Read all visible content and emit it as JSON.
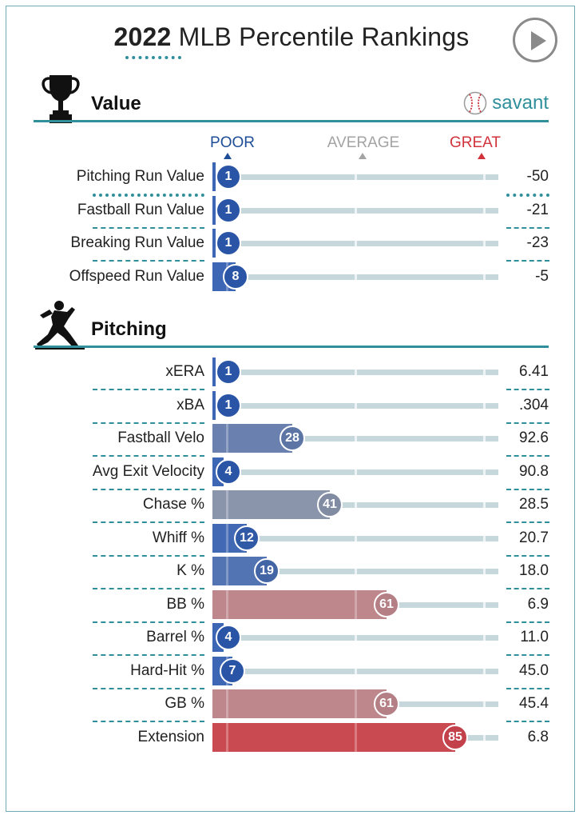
{
  "header": {
    "year": "2022",
    "title_rest": " MLB Percentile Rankings",
    "play_button": "play-icon"
  },
  "colors": {
    "accent": "#2f8f9b",
    "poor": "#1e4d97",
    "great": "#d2323b",
    "average": "#a3a3a3"
  },
  "sections": {
    "value": {
      "title": "Value",
      "icon": "trophy-icon",
      "brand": "savant",
      "brand_icon": "baseball-icon"
    },
    "pitching": {
      "title": "Pitching",
      "icon": "pitcher-icon"
    }
  },
  "scale": {
    "poor": "POOR",
    "average": "AVERAGE",
    "great": "GREAT"
  },
  "chart_data": {
    "type": "bar",
    "orientation": "horizontal",
    "title": "2022 MLB Percentile Rankings",
    "xlim": [
      0,
      100
    ],
    "groups": [
      {
        "name": "Value",
        "rows": [
          {
            "label": "Pitching Run Value",
            "percentile": 1,
            "value": "-50"
          },
          {
            "label": "Fastball Run Value",
            "percentile": 1,
            "value": "-21"
          },
          {
            "label": "Breaking Run Value",
            "percentile": 1,
            "value": "-23"
          },
          {
            "label": "Offspeed Run Value",
            "percentile": 8,
            "value": "-5"
          }
        ]
      },
      {
        "name": "Pitching",
        "rows": [
          {
            "label": "xERA",
            "percentile": 1,
            "value": "6.41"
          },
          {
            "label": "xBA",
            "percentile": 1,
            "value": ".304"
          },
          {
            "label": "Fastball Velo",
            "percentile": 28,
            "value": "92.6"
          },
          {
            "label": "Avg Exit Velocity",
            "percentile": 4,
            "value": "90.8"
          },
          {
            "label": "Chase %",
            "percentile": 41,
            "value": "28.5"
          },
          {
            "label": "Whiff %",
            "percentile": 12,
            "value": "20.7"
          },
          {
            "label": "K %",
            "percentile": 19,
            "value": "18.0"
          },
          {
            "label": "BB %",
            "percentile": 61,
            "value": "6.9"
          },
          {
            "label": "Barrel %",
            "percentile": 4,
            "value": "11.0"
          },
          {
            "label": "Hard-Hit %",
            "percentile": 7,
            "value": "45.0"
          },
          {
            "label": "GB %",
            "percentile": 61,
            "value": "45.4"
          },
          {
            "label": "Extension",
            "percentile": 85,
            "value": "6.8"
          }
        ]
      }
    ]
  }
}
